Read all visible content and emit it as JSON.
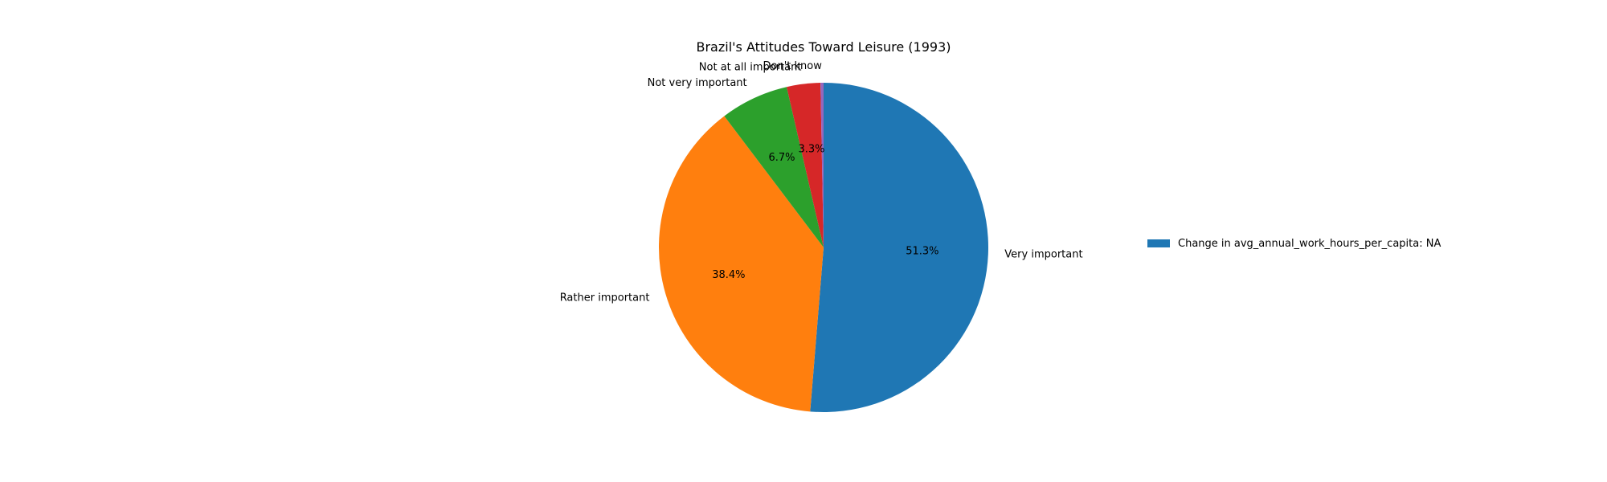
{
  "chart_data": {
    "type": "pie",
    "title": "Brazil's Attitudes Toward Leisure (1993)",
    "slices": [
      {
        "label": "Very important",
        "value": 51.3,
        "pct_label": "51.3%",
        "color": "#1f77b4"
      },
      {
        "label": "Rather important",
        "value": 38.4,
        "pct_label": "38.4%",
        "color": "#ff7f0e"
      },
      {
        "label": "Not very important",
        "value": 6.7,
        "pct_label": "6.7%",
        "color": "#2ca02c"
      },
      {
        "label": "Not at all important",
        "value": 3.3,
        "pct_label": "3.3%",
        "color": "#d62728"
      },
      {
        "label": "Don't know",
        "value": 0.3,
        "pct_label": "",
        "color": "#9467bd"
      }
    ],
    "start_angle_deg": 90,
    "direction": "clockwise",
    "legend": {
      "entries": [
        {
          "label": "Change in avg_annual_work_hours_per_capita: NA",
          "color": "#1f77b4"
        }
      ],
      "position": "right"
    }
  }
}
